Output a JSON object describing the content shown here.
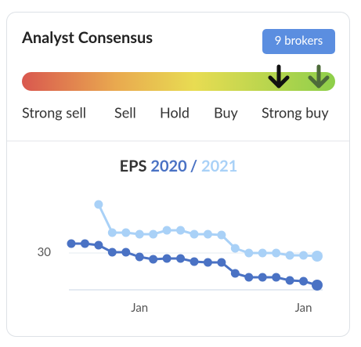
{
  "header": {
    "title": "Analyst Consensus",
    "badge": "9 brokers"
  },
  "consensus": {
    "labels": [
      "Strong sell",
      "Sell",
      "Hold",
      "Buy",
      "Strong buy"
    ]
  },
  "chart_data": {
    "type": "line",
    "title": "EPS",
    "title_separator": "/",
    "categories": [
      null,
      null,
      null,
      null,
      null,
      "Jan",
      null,
      null,
      null,
      null,
      null,
      null,
      null,
      null,
      null,
      null,
      null,
      "Jan",
      null
    ],
    "series": [
      {
        "name": "2020",
        "color": "#4a72c4",
        "values": [
          31.2,
          31.2,
          31.0,
          30.1,
          30.1,
          29.5,
          29.2,
          29.3,
          29.3,
          28.9,
          28.8,
          28.8,
          27.4,
          26.9,
          26.9,
          26.9,
          26.5,
          26.4,
          25.9
        ]
      },
      {
        "name": "2021",
        "color": "#a9d1f7",
        "values": [
          null,
          null,
          36.2,
          32.6,
          32.6,
          32.4,
          32.4,
          32.9,
          32.9,
          32.4,
          32.4,
          32.3,
          30.6,
          30.0,
          30.0,
          30.0,
          29.7,
          29.7,
          29.6
        ]
      }
    ],
    "ylim": [
      25,
      37
    ],
    "yticks": [
      30
    ],
    "grid": true
  }
}
